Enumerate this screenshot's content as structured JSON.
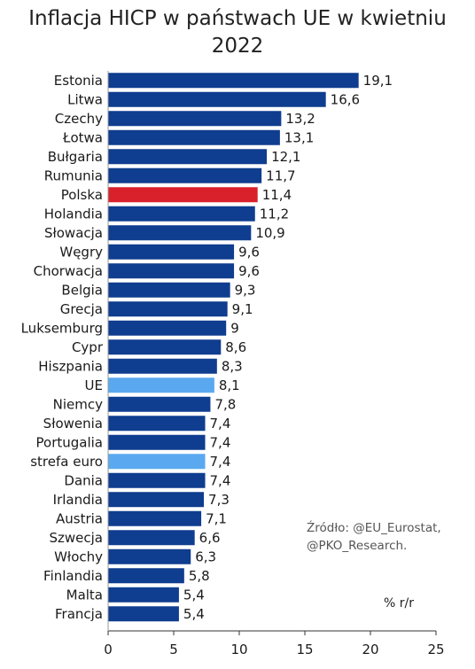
{
  "chart_data": {
    "type": "bar",
    "orientation": "horizontal",
    "title": "Inflacja HICP w państwach UE w kwietniu 2022",
    "categories": [
      "Estonia",
      "Litwa",
      "Czechy",
      "Łotwa",
      "Bułgaria",
      "Rumunia",
      "Polska",
      "Holandia",
      "Słowacja",
      "Węgry",
      "Chorwacja",
      "Belgia",
      "Grecja",
      "Luksemburg",
      "Cypr",
      "Hiszpania",
      "UE",
      "Niemcy",
      "Słowenia",
      "Portugalia",
      "strefa euro",
      "Dania",
      "Irlandia",
      "Austria",
      "Szwecja",
      "Włochy",
      "Finlandia",
      "Malta",
      "Francja"
    ],
    "values": [
      19.1,
      16.6,
      13.2,
      13.1,
      12.1,
      11.7,
      11.4,
      11.2,
      10.9,
      9.6,
      9.6,
      9.3,
      9.1,
      9.0,
      8.6,
      8.3,
      8.1,
      7.8,
      7.4,
      7.4,
      7.4,
      7.4,
      7.3,
      7.1,
      6.6,
      6.3,
      5.8,
      5.4,
      5.4
    ],
    "value_labels": [
      "19,1",
      "16,6",
      "13,2",
      "13,1",
      "12,1",
      "11,7",
      "11,4",
      "11,2",
      "10,9",
      "9,6",
      "9,6",
      "9,3",
      "9,1",
      "9",
      "8,6",
      "8,3",
      "8,1",
      "7,8",
      "7,4",
      "7,4",
      "7,4",
      "7,4",
      "7,3",
      "7,1",
      "6,6",
      "6,3",
      "5,8",
      "5,4",
      "5,4"
    ],
    "bar_colors": {
      "default": "#0f3d8f",
      "Polska": "#d9212c",
      "UE": "#5aa9f0",
      "strefa euro": "#5aa9f0"
    },
    "xlim": [
      0,
      25
    ],
    "xticks": [
      0,
      5,
      10,
      15,
      20,
      25
    ],
    "xlabel": "",
    "ylabel": "",
    "grid": false,
    "unit_label": "% r/r",
    "source_lines": [
      "Źródło: @EU_Eurostat,",
      "@PKO_Research."
    ]
  }
}
